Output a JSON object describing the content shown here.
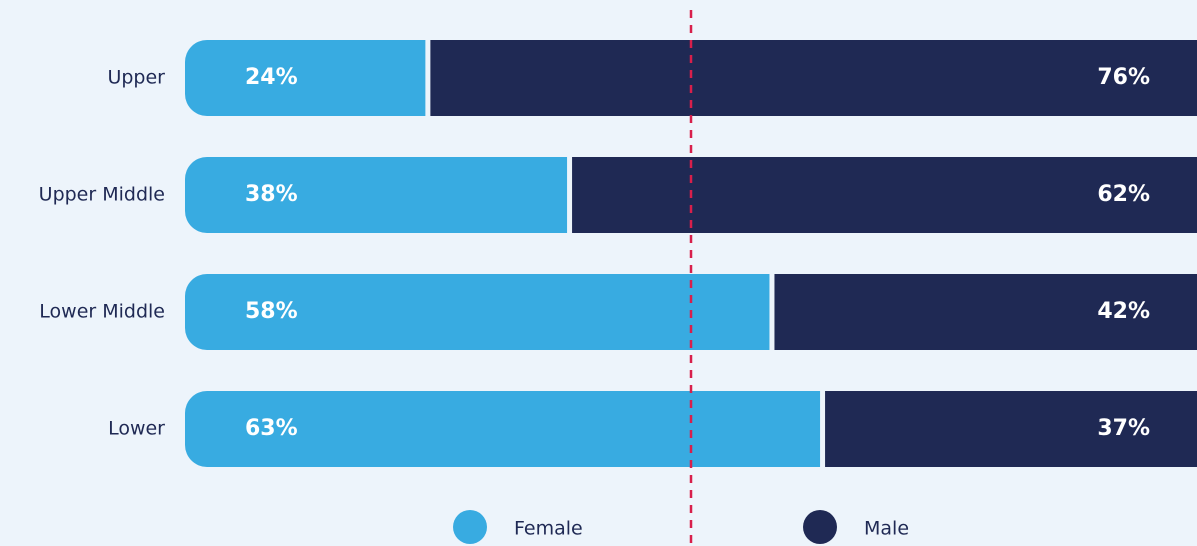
{
  "chart_data": {
    "type": "stacked_bar_horizontal",
    "categories": [
      "Upper",
      "Upper Middle",
      "Lower Middle",
      "Lower"
    ],
    "series": [
      {
        "name": "Female",
        "color": "#38abe1",
        "values": [
          24,
          38,
          58,
          63
        ],
        "value_labels": [
          "24%",
          "38%",
          "58%",
          "63%"
        ]
      },
      {
        "name": "Male",
        "color": "#1f2954",
        "values": [
          76,
          62,
          42,
          37
        ],
        "value_labels": [
          "76%",
          "62%",
          "42%",
          "37%"
        ]
      }
    ],
    "xlim": [
      0,
      100
    ],
    "reference_line": {
      "value": 50,
      "color": "#d81f4b"
    }
  }
}
